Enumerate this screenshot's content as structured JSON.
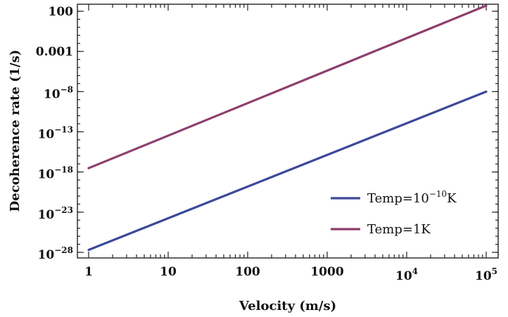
{
  "chart_data": {
    "type": "line",
    "title": "",
    "xlabel": "Velocity (m/s)",
    "ylabel": "Decoherence rate (1/s)",
    "x_scale": "log",
    "y_scale": "log",
    "xlim": [
      1,
      100000
    ],
    "ylim": [
      1e-28,
      2000
    ],
    "grid": false,
    "legend_position": "bottom-right",
    "x_ticks": [
      {
        "value": 1,
        "label": "1"
      },
      {
        "value": 10,
        "label": "10"
      },
      {
        "value": 100,
        "label": "100"
      },
      {
        "value": 1000,
        "label": "1000"
      },
      {
        "value": 10000,
        "label": "10",
        "exp": "4"
      },
      {
        "value": 100000,
        "label": "10",
        "exp": "5"
      }
    ],
    "y_ticks": [
      {
        "value": 1e-28,
        "label": "10",
        "exp": "−28"
      },
      {
        "value": 1e-23,
        "label": "10",
        "exp": "−23"
      },
      {
        "value": 1e-18,
        "label": "10",
        "exp": "−18"
      },
      {
        "value": 1e-13,
        "label": "10",
        "exp": "−13"
      },
      {
        "value": 1e-08,
        "label": "10",
        "exp": "−8"
      },
      {
        "value": 0.001,
        "label": "0.001"
      },
      {
        "value": 100,
        "label": "100"
      }
    ],
    "series": [
      {
        "name": "Temp=10",
        "name_exp": "−10",
        "name_suffix": "K",
        "color": "#3d4a9a",
        "x": [
          1,
          100000
        ],
        "y": [
          2e-28,
          1e-08
        ]
      },
      {
        "name": "Temp=1K",
        "name_exp": "",
        "name_suffix": "",
        "color": "#8e3f6c",
        "x": [
          1,
          100000
        ],
        "y": [
          3e-18,
          500
        ]
      }
    ]
  }
}
